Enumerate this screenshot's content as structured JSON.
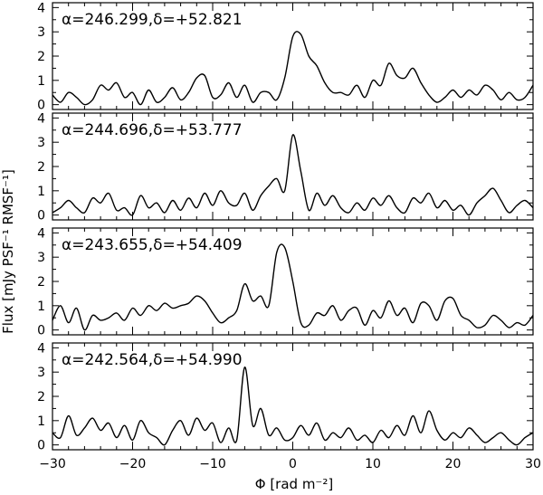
{
  "chart_data": {
    "type": "line",
    "xlabel": "Φ [rad m⁻²]",
    "ylabel": "Flux [mJy PSF⁻¹ RMSF⁻¹]",
    "xlim": [
      -30,
      30
    ],
    "ylim": [
      -0.2,
      4.2
    ],
    "xticks": [
      -30,
      -20,
      -10,
      0,
      10,
      20,
      30
    ],
    "xtick_labels": [
      "−30",
      "−20",
      "−10",
      "0",
      "10",
      "20",
      "30"
    ],
    "yticks": [
      0,
      1,
      2,
      3,
      4
    ],
    "ytick_labels": [
      "0",
      "1",
      "2",
      "3",
      "4"
    ],
    "grid": false,
    "panels": [
      {
        "label": "α=246.299,δ=+52.821",
        "x": [
          -30,
          -29,
          -28,
          -27,
          -26,
          -25,
          -24,
          -23,
          -22,
          -21,
          -20,
          -19,
          -18,
          -17,
          -16,
          -15,
          -14,
          -13,
          -12,
          -11,
          -10,
          -9,
          -8,
          -7,
          -6,
          -5,
          -4,
          -3,
          -2,
          -1,
          0,
          1,
          2,
          3,
          4,
          5,
          6,
          7,
          8,
          9,
          10,
          11,
          12,
          13,
          14,
          15,
          16,
          17,
          18,
          19,
          20,
          21,
          22,
          23,
          24,
          25,
          26,
          27,
          28,
          29,
          30
        ],
        "y": [
          0.4,
          0.1,
          0.5,
          0.3,
          0.0,
          0.2,
          0.8,
          0.6,
          0.9,
          0.3,
          0.5,
          0.0,
          0.6,
          0.1,
          0.3,
          0.7,
          0.2,
          0.5,
          1.1,
          1.2,
          0.3,
          0.4,
          0.9,
          0.3,
          0.8,
          0.1,
          0.5,
          0.5,
          0.2,
          1.1,
          2.8,
          2.9,
          2.0,
          1.6,
          0.9,
          0.5,
          0.5,
          0.4,
          0.8,
          0.3,
          1.0,
          0.8,
          1.7,
          1.2,
          1.1,
          1.5,
          0.9,
          0.4,
          0.1,
          0.3,
          0.6,
          0.3,
          0.6,
          0.4,
          0.8,
          0.6,
          0.2,
          0.5,
          0.2,
          0.3,
          0.8
        ]
      },
      {
        "label": "α=244.696,δ=+53.777",
        "x": [
          -30,
          -29,
          -28,
          -27,
          -26,
          -25,
          -24,
          -23,
          -22,
          -21,
          -20,
          -19,
          -18,
          -17,
          -16,
          -15,
          -14,
          -13,
          -12,
          -11,
          -10,
          -9,
          -8,
          -7,
          -6,
          -5,
          -4,
          -3,
          -2,
          -1,
          0,
          1,
          2,
          3,
          4,
          5,
          6,
          7,
          8,
          9,
          10,
          11,
          12,
          13,
          14,
          15,
          16,
          17,
          18,
          19,
          20,
          21,
          22,
          23,
          24,
          25,
          26,
          27,
          28,
          29,
          30
        ],
        "y": [
          0.1,
          0.3,
          0.6,
          0.3,
          0.1,
          0.7,
          0.5,
          0.9,
          0.2,
          0.3,
          0.0,
          0.8,
          0.3,
          0.5,
          0.1,
          0.6,
          0.2,
          0.7,
          0.3,
          0.9,
          0.4,
          1.0,
          0.5,
          0.4,
          0.9,
          0.2,
          0.8,
          1.2,
          1.5,
          1.0,
          3.3,
          1.8,
          0.2,
          0.9,
          0.4,
          0.8,
          0.3,
          0.1,
          0.5,
          0.2,
          0.7,
          0.4,
          0.8,
          0.3,
          0.1,
          0.7,
          0.5,
          0.9,
          0.3,
          0.6,
          0.2,
          0.4,
          0.0,
          0.5,
          0.8,
          1.1,
          0.6,
          0.1,
          0.4,
          0.6,
          0.3
        ]
      },
      {
        "label": "α=243.655,δ=+54.409",
        "x": [
          -30,
          -29,
          -28,
          -27,
          -26,
          -25,
          -24,
          -23,
          -22,
          -21,
          -20,
          -19,
          -18,
          -17,
          -16,
          -15,
          -14,
          -13,
          -12,
          -11,
          -10,
          -9,
          -8,
          -7,
          -6,
          -5,
          -4,
          -3,
          -2,
          -1,
          0,
          1,
          2,
          3,
          4,
          5,
          6,
          7,
          8,
          9,
          10,
          11,
          12,
          13,
          14,
          15,
          16,
          17,
          18,
          19,
          20,
          21,
          22,
          23,
          24,
          25,
          26,
          27,
          28,
          29,
          30
        ],
        "y": [
          0.4,
          1.0,
          0.3,
          0.9,
          0.0,
          0.6,
          0.4,
          0.5,
          0.7,
          0.4,
          0.9,
          0.6,
          1.0,
          0.8,
          1.1,
          0.9,
          1.0,
          1.1,
          1.4,
          1.2,
          0.7,
          0.3,
          0.5,
          0.8,
          1.9,
          1.2,
          1.4,
          1.0,
          3.2,
          3.4,
          2.0,
          0.3,
          0.2,
          0.7,
          0.6,
          1.0,
          0.4,
          0.8,
          0.9,
          0.2,
          0.8,
          0.5,
          1.2,
          0.6,
          0.9,
          0.3,
          1.1,
          1.0,
          0.4,
          1.2,
          1.3,
          0.6,
          0.4,
          0.1,
          0.2,
          0.6,
          0.4,
          0.1,
          0.3,
          0.2,
          0.6
        ]
      },
      {
        "label": "α=242.564,δ=+54.990",
        "x": [
          -30,
          -29,
          -28,
          -27,
          -26,
          -25,
          -24,
          -23,
          -22,
          -21,
          -20,
          -19,
          -18,
          -17,
          -16,
          -15,
          -14,
          -13,
          -12,
          -11,
          -10,
          -9,
          -8,
          -7,
          -6,
          -5,
          -4,
          -3,
          -2,
          -1,
          0,
          1,
          2,
          3,
          4,
          5,
          6,
          7,
          8,
          9,
          10,
          11,
          12,
          13,
          14,
          15,
          16,
          17,
          18,
          19,
          20,
          21,
          22,
          23,
          24,
          25,
          26,
          27,
          28,
          29,
          30
        ],
        "y": [
          0.5,
          0.3,
          1.2,
          0.4,
          0.7,
          1.1,
          0.6,
          0.9,
          0.3,
          0.8,
          0.2,
          1.0,
          0.5,
          0.3,
          0.0,
          0.6,
          1.0,
          0.4,
          1.1,
          0.6,
          0.9,
          0.1,
          0.7,
          0.2,
          3.2,
          0.8,
          1.5,
          0.4,
          0.7,
          0.2,
          0.3,
          0.8,
          0.4,
          0.9,
          0.2,
          0.5,
          0.3,
          0.7,
          0.2,
          0.4,
          0.1,
          0.6,
          0.3,
          0.8,
          0.4,
          1.2,
          0.5,
          1.4,
          0.6,
          0.2,
          0.5,
          0.3,
          0.7,
          0.4,
          0.1,
          0.3,
          0.5,
          0.2,
          0.0,
          0.3,
          0.5
        ]
      }
    ]
  }
}
